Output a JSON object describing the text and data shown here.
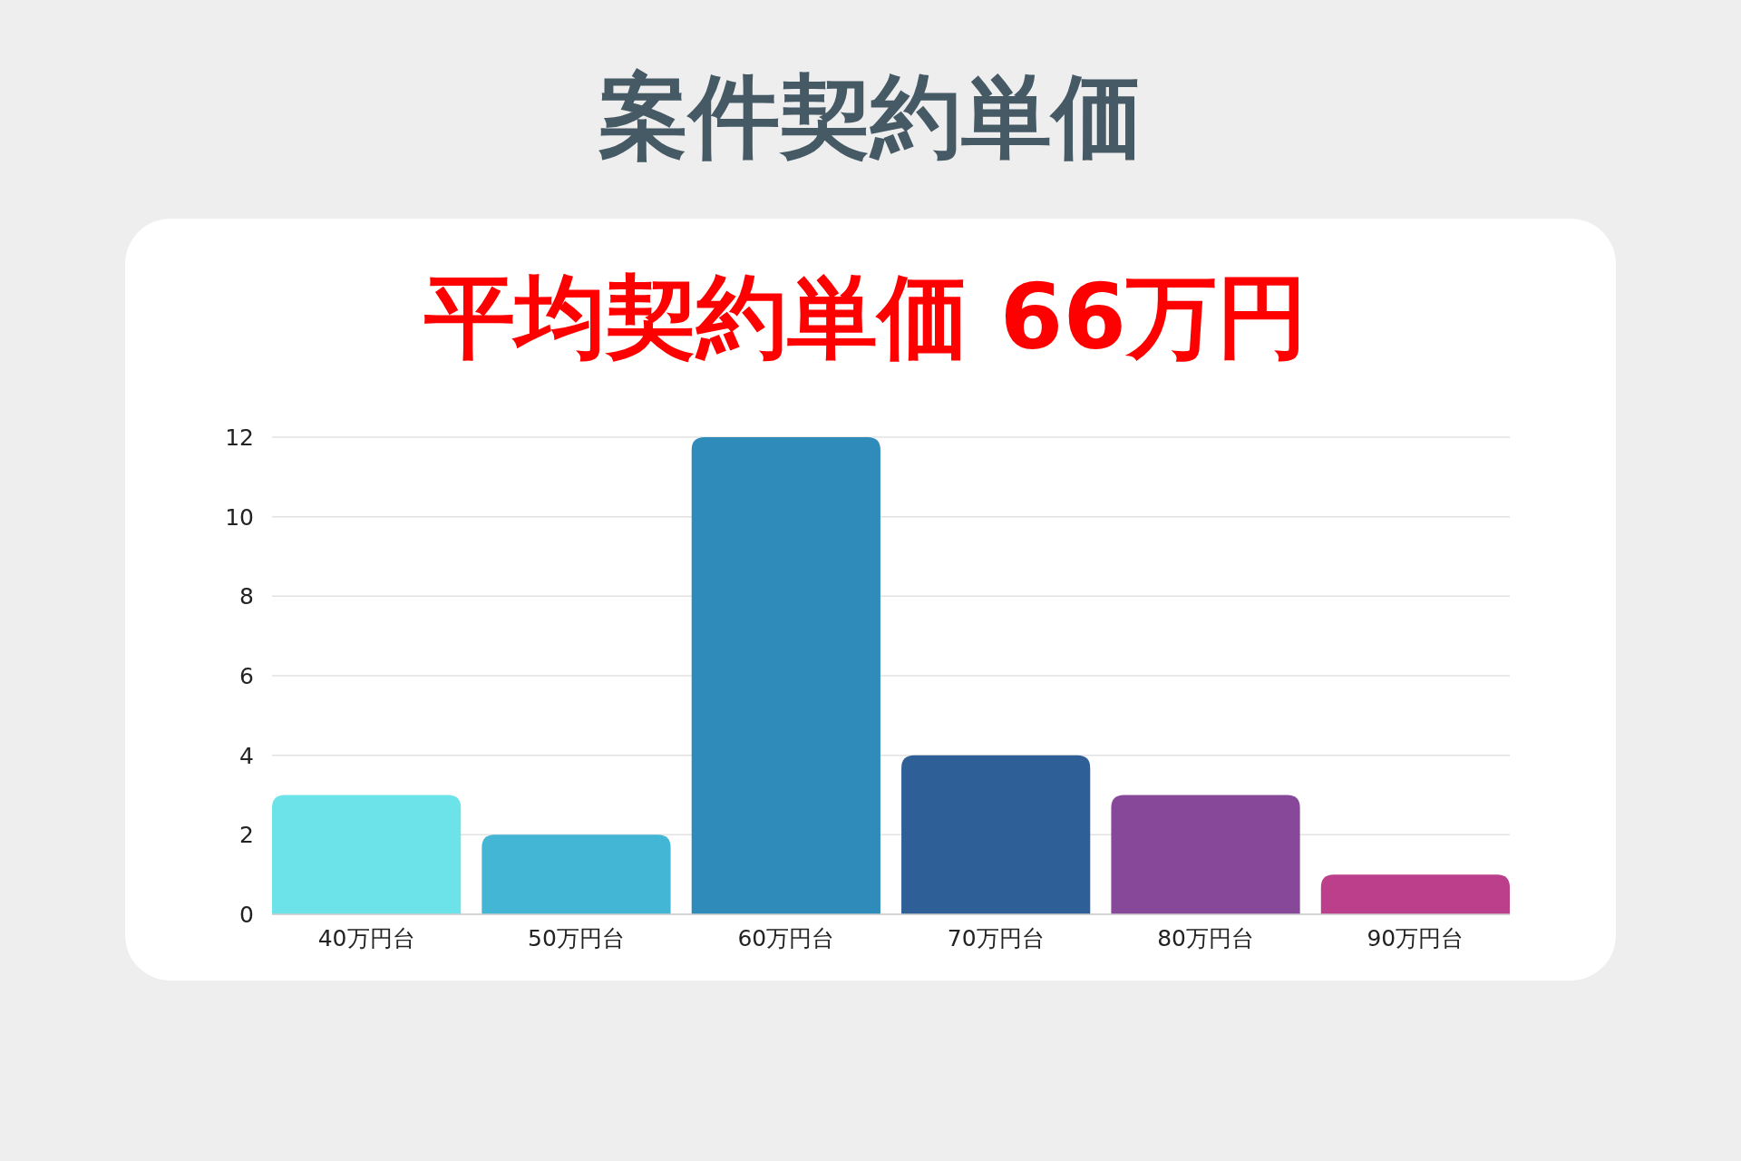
{
  "chart_data": {
    "type": "bar",
    "title": "案件契約単価",
    "subtitle": "平均契約単価 66万円",
    "categories": [
      "40万円台",
      "50万円台",
      "60万円台",
      "70万円台",
      "80万円台",
      "90万円台"
    ],
    "values": [
      3,
      2,
      12,
      4,
      3,
      1
    ],
    "colors": [
      "#6ce3e8",
      "#43b6d6",
      "#2e8bba",
      "#2e5f96",
      "#87489a",
      "#bb3f8b"
    ],
    "ylim": [
      0,
      12
    ],
    "yticks": [
      0,
      2,
      4,
      6,
      8,
      10,
      12
    ],
    "grid": "y"
  }
}
